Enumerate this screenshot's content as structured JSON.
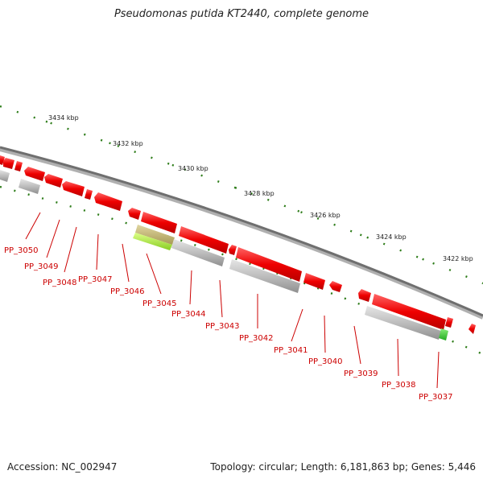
{
  "title": "Pseudomonas putida KT2440, complete genome",
  "footer": {
    "accession": "Accession: NC_002947",
    "summary": "Topology: circular; Length: 6,181,863 bp; Genes: 5,446"
  },
  "scale_ticks": [
    "3434 kbp",
    "3432 kbp",
    "3430 kbp",
    "3428 kbp",
    "3426 kbp",
    "3424 kbp",
    "3422 kbp"
  ],
  "genes": [
    "PP_3050",
    "PP_3049",
    "PP_3048",
    "PP_3047",
    "PP_3046",
    "PP_3045",
    "PP_3044",
    "PP_3043",
    "PP_3042",
    "PP_3041",
    "PP_3040",
    "PP_3039",
    "PP_3038",
    "PP_3037"
  ],
  "colors": {
    "gene": "#ee0000",
    "label": "#cc0000",
    "backbone": "#7f7f7f",
    "tick": "#2e7d1a",
    "feature_gray": "#b8b8b8",
    "feature_green": "#44cc33",
    "feature_lime": "#aaee44"
  }
}
